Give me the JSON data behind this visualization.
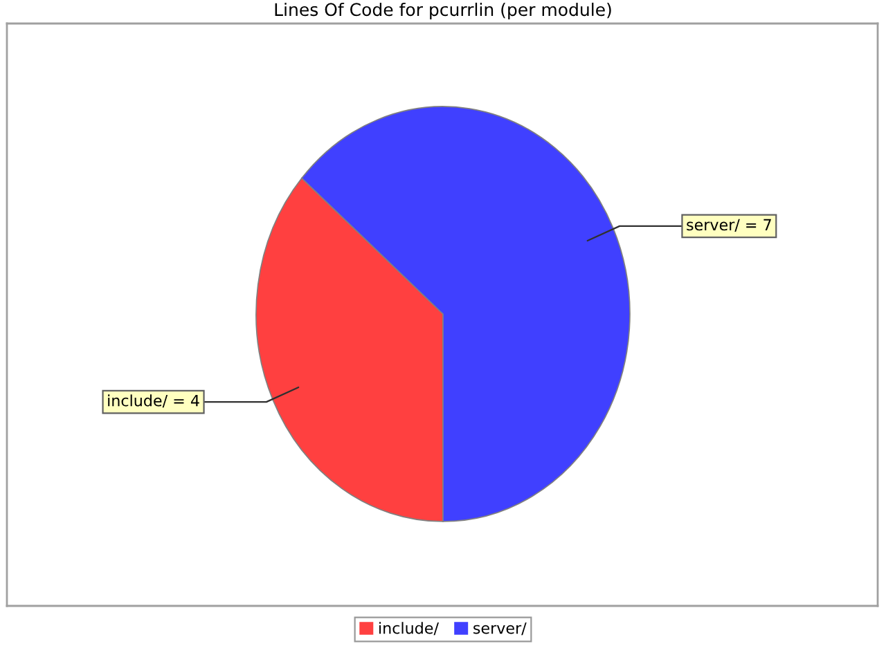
{
  "chart_data": {
    "type": "pie",
    "title": "Lines Of Code for pcurrlin (per module)",
    "categories": [
      "include/",
      "server/"
    ],
    "values": [
      4,
      7
    ],
    "colors": [
      "#ff4040",
      "#4040ff"
    ],
    "value_labels": [
      "include/ = 4",
      "server/ = 7"
    ],
    "legend": "bottom"
  }
}
